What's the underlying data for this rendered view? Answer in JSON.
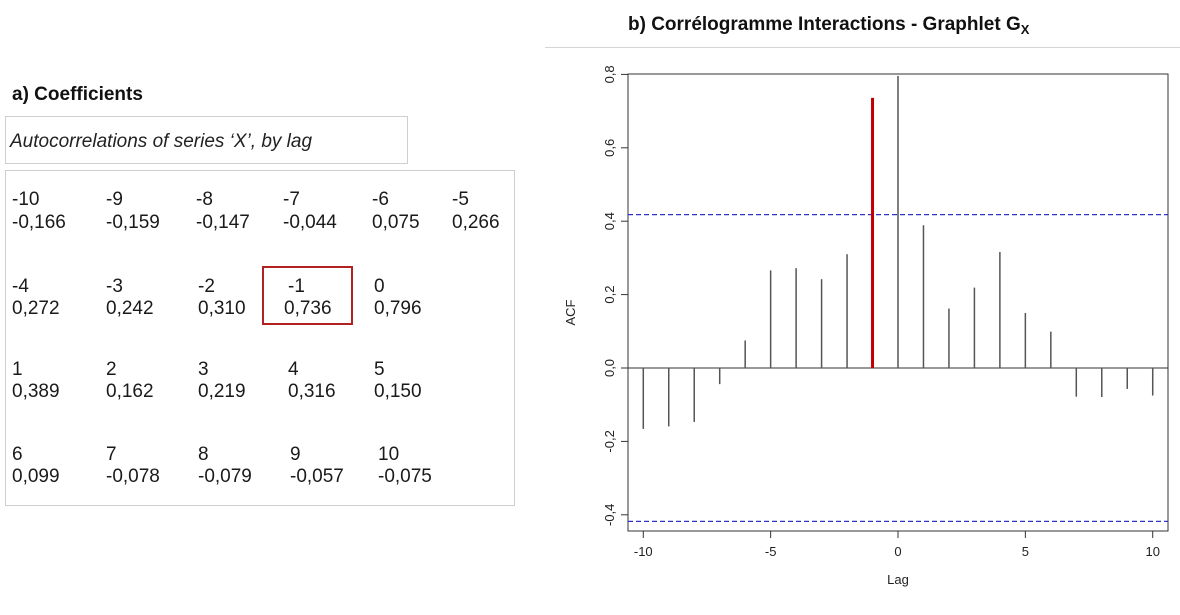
{
  "panel_a": {
    "title": "a) Coefficients",
    "subtitle": "Autocorrelations of series ‘X’, by lag",
    "rows": [
      {
        "lags": [
          "-10",
          "-9",
          "-8",
          "-7",
          "-6",
          "-5"
        ],
        "values": [
          "-0,166",
          "-0,159",
          "-0,147",
          "-0,044",
          "0,075",
          "0,266"
        ]
      },
      {
        "lags": [
          "-4",
          "-3",
          "-2",
          "-1",
          "0"
        ],
        "values": [
          "0,272",
          "0,242",
          "0,310",
          "0,736",
          "0,796"
        ]
      },
      {
        "lags": [
          "1",
          "2",
          "3",
          "4",
          "5"
        ],
        "values": [
          "0,389",
          "0,162",
          "0,219",
          "0,316",
          "0,150"
        ]
      },
      {
        "lags": [
          "6",
          "7",
          "8",
          "9",
          "10"
        ],
        "values": [
          "0,099",
          "-0,078",
          "-0,079",
          "-0,057",
          "-0,075"
        ]
      }
    ],
    "highlighted_lag": "-1"
  },
  "panel_b": {
    "title": "b) Corrélogramme Interactions - Graphlet G",
    "title_subscript": "X"
  },
  "chart_data": {
    "type": "bar",
    "xlabel": "Lag",
    "ylabel": "ACF",
    "x": [
      -10,
      -9,
      -8,
      -7,
      -6,
      -5,
      -4,
      -3,
      -2,
      -1,
      0,
      1,
      2,
      3,
      4,
      5,
      6,
      7,
      8,
      9,
      10
    ],
    "values": [
      -0.166,
      -0.159,
      -0.147,
      -0.044,
      0.075,
      0.266,
      0.272,
      0.242,
      0.31,
      0.736,
      0.796,
      0.389,
      0.162,
      0.219,
      0.316,
      0.15,
      0.099,
      -0.078,
      -0.079,
      -0.057,
      -0.075
    ],
    "xlim": [
      -10.6,
      10.6
    ],
    "ylim": [
      -0.42,
      0.8
    ],
    "xticks": [
      -10,
      -5,
      0,
      5,
      10
    ],
    "xtick_labels": [
      "-10",
      "-5",
      "0",
      "5",
      "10"
    ],
    "yticks": [
      -0.4,
      -0.2,
      0.0,
      0.2,
      0.4,
      0.6,
      0.8
    ],
    "ytick_labels": [
      "-0,4",
      "-0,2",
      "0,0",
      "0,2",
      "0,4",
      "0,6",
      "0,8"
    ],
    "confidence_bounds": [
      0.418,
      -0.418
    ],
    "highlight_lag": -1,
    "colors": {
      "bar": "#555555",
      "highlight": "#c00000",
      "bounds": "#3333cc",
      "frame": "#333333"
    }
  }
}
